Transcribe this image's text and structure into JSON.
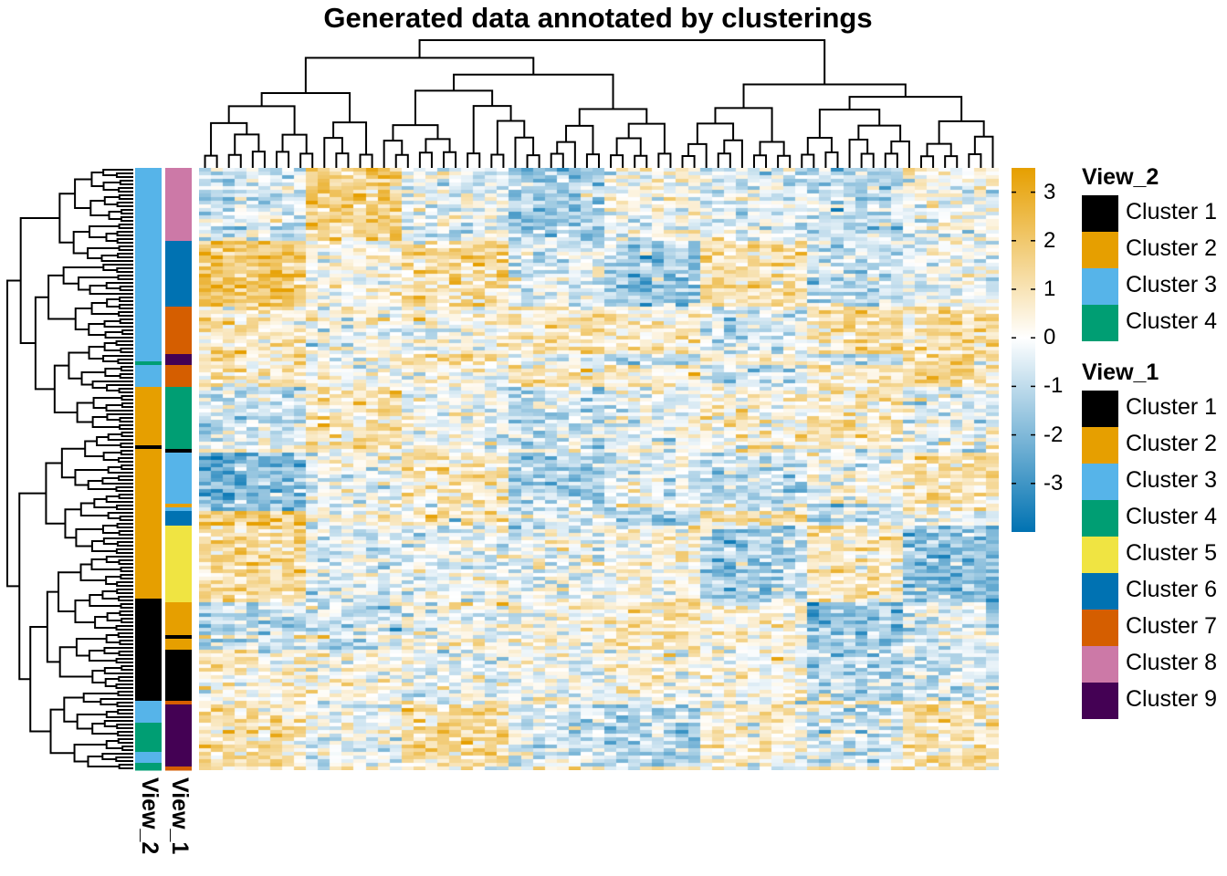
{
  "chart_data": {
    "type": "heatmap",
    "title": "Generated data annotated by clusterings",
    "n_rows": 165,
    "n_cols": 67,
    "color_scale": {
      "low": "#0072B2",
      "mid": "#ffffff",
      "high": "#E69F00",
      "min": -4,
      "max": 3.5,
      "ticks": [
        3,
        2,
        1,
        0,
        -1,
        -2,
        -3
      ]
    },
    "row_annotations": [
      {
        "name": "View_2",
        "segments": [
          {
            "cluster": "Cluster 3",
            "rows": 53
          },
          {
            "cluster": "Cluster 4",
            "rows": 1
          },
          {
            "cluster": "Cluster 3",
            "rows": 6
          },
          {
            "cluster": "Cluster 2",
            "rows": 16
          },
          {
            "cluster": "Cluster 1",
            "rows": 1
          },
          {
            "cluster": "Cluster 2",
            "rows": 41
          },
          {
            "cluster": "Cluster 1",
            "rows": 28
          },
          {
            "cluster": "Cluster 3",
            "rows": 6
          },
          {
            "cluster": "Cluster 4",
            "rows": 8
          },
          {
            "cluster": "Cluster 3",
            "rows": 3
          },
          {
            "cluster": "Cluster 4",
            "rows": 2
          }
        ]
      },
      {
        "name": "View_1",
        "segments": [
          {
            "cluster": "Cluster 8",
            "rows": 20
          },
          {
            "cluster": "Cluster 6",
            "rows": 18
          },
          {
            "cluster": "Cluster 7",
            "rows": 13
          },
          {
            "cluster": "Cluster 9",
            "rows": 3
          },
          {
            "cluster": "Cluster 7",
            "rows": 6
          },
          {
            "cluster": "Cluster 4",
            "rows": 17
          },
          {
            "cluster": "Cluster 1",
            "rows": 1
          },
          {
            "cluster": "Cluster 3",
            "rows": 14
          },
          {
            "cluster": "Cluster 2",
            "rows": 1
          },
          {
            "cluster": "Cluster 3",
            "rows": 1
          },
          {
            "cluster": "Cluster 6",
            "rows": 4
          },
          {
            "cluster": "Cluster 5",
            "rows": 21
          },
          {
            "cluster": "Cluster 2",
            "rows": 9
          },
          {
            "cluster": "Cluster 1",
            "rows": 1
          },
          {
            "cluster": "Cluster 2",
            "rows": 3
          },
          {
            "cluster": "Cluster 1",
            "rows": 14
          },
          {
            "cluster": "Cluster 7",
            "rows": 1
          },
          {
            "cluster": "Cluster 9",
            "rows": 17
          },
          {
            "cluster": "Cluster 7",
            "rows": 1
          }
        ]
      }
    ],
    "legends": [
      {
        "title": "View_2",
        "items": [
          {
            "label": "Cluster 1",
            "color": "#000000"
          },
          {
            "label": "Cluster 2",
            "color": "#E69F00"
          },
          {
            "label": "Cluster 3",
            "color": "#56B4E9"
          },
          {
            "label": "Cluster 4",
            "color": "#009E73"
          }
        ]
      },
      {
        "title": "View_1",
        "items": [
          {
            "label": "Cluster 1",
            "color": "#000000"
          },
          {
            "label": "Cluster 2",
            "color": "#E69F00"
          },
          {
            "label": "Cluster 3",
            "color": "#56B4E9"
          },
          {
            "label": "Cluster 4",
            "color": "#009E73"
          },
          {
            "label": "Cluster 5",
            "color": "#F0E442"
          },
          {
            "label": "Cluster 6",
            "color": "#0072B2"
          },
          {
            "label": "Cluster 7",
            "color": "#D55E00"
          },
          {
            "label": "Cluster 8",
            "color": "#CC79A7"
          },
          {
            "label": "Cluster 9",
            "color": "#440154"
          }
        ]
      }
    ]
  }
}
